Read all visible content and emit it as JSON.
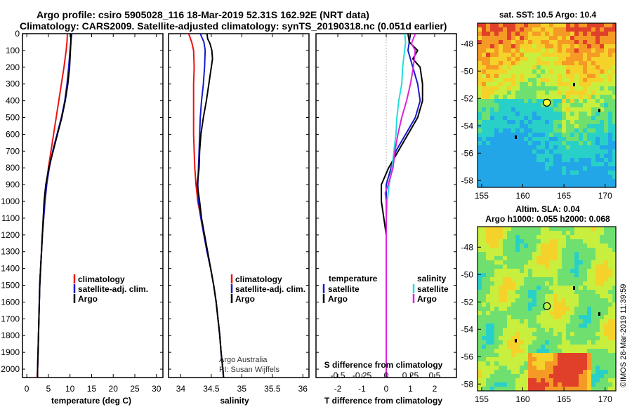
{
  "header": {
    "title_line1": "Argo profile: csiro 5905028_116 18-Mar-2019 52.31S 162.92E (NRT data)",
    "title_line2": "Climatology: CARS2009. Satellite-adjusted climatology: synTS_20190318.nc (0.051d earlier)"
  },
  "depth_ticks": [
    "0",
    "100",
    "200",
    "300",
    "400",
    "500",
    "600",
    "700",
    "800",
    "900",
    "1000",
    "1100",
    "1200",
    "1300",
    "1400",
    "1500",
    "1600",
    "1700",
    "1800",
    "1900",
    "2000"
  ],
  "colors": {
    "climatology": "#ee1111",
    "satellite": "#1a1acc",
    "argo": "#000000",
    "cyan": "#22dddd",
    "magenta": "#dd22dd"
  },
  "chart_data": [
    {
      "type": "line",
      "panel": "temperature",
      "xlabel": "temperature (deg C)",
      "xlim": [
        -1,
        31.5
      ],
      "ylim": [
        2050,
        0
      ],
      "x_ticks": [
        "0",
        "5",
        "10",
        "15",
        "20",
        "25",
        "30"
      ],
      "legend": [
        "climatology",
        "satellite-adj. clim.",
        "Argo"
      ],
      "series": [
        {
          "name": "climatology",
          "color": "#ee1111",
          "depth": [
            0,
            50,
            100,
            200,
            300,
            400,
            500,
            600,
            700,
            800,
            900,
            1000,
            1100,
            1200,
            1300,
            1400,
            1500,
            1600,
            1700,
            1800,
            1900,
            2000,
            2050
          ],
          "values": [
            9.4,
            9.3,
            9.1,
            8.6,
            8.0,
            7.4,
            6.8,
            6.2,
            5.6,
            5.0,
            4.6,
            4.2,
            3.9,
            3.6,
            3.4,
            3.2,
            3.0,
            2.9,
            2.8,
            2.7,
            2.6,
            2.5,
            2.4
          ]
        },
        {
          "name": "satellite-adj. clim.",
          "color": "#1a1acc",
          "depth": [
            0,
            50,
            100,
            200,
            300,
            400,
            500,
            600,
            700,
            800,
            900,
            1000,
            1100,
            1200,
            1300,
            1400,
            1500,
            1600,
            1700,
            1800,
            1900,
            2000,
            2050
          ],
          "values": [
            10.4,
            10.2,
            10.0,
            9.7,
            9.3,
            8.8,
            8.0,
            7.0,
            6.0,
            5.2,
            4.6,
            4.2,
            3.9,
            3.6,
            3.4,
            3.2,
            3.0,
            2.9,
            2.8,
            2.7,
            2.6,
            2.5,
            2.5
          ]
        },
        {
          "name": "Argo",
          "color": "#000000",
          "depth": [
            0,
            50,
            100,
            200,
            300,
            400,
            500,
            600,
            700,
            800,
            900,
            1000,
            1100,
            1200,
            1300,
            1400,
            1500,
            1600,
            1700,
            1800,
            1900,
            2000,
            2050
          ],
          "values": [
            10.2,
            10.2,
            10.1,
            9.9,
            9.5,
            8.9,
            8.1,
            7.1,
            6.1,
            5.1,
            4.4,
            4.0,
            3.8,
            3.6,
            3.4,
            3.2,
            3.0,
            2.9,
            2.8,
            2.7,
            2.6,
            2.5,
            2.5
          ]
        }
      ]
    },
    {
      "type": "line",
      "panel": "salinity",
      "xlabel": "salinity",
      "xlim": [
        33.8,
        36.1
      ],
      "ylim": [
        2050,
        0
      ],
      "x_ticks": [
        "34",
        "34.5",
        "35",
        "35.5",
        "36"
      ],
      "legend": [
        "climatology",
        "satellite-adj. clim.",
        "Argo"
      ],
      "credit": [
        "Argo Australia",
        "PI: Susan Wijffels"
      ],
      "series": [
        {
          "name": "climatology",
          "color": "#ee1111",
          "depth": [
            0,
            50,
            100,
            200,
            300,
            400,
            500,
            600,
            700,
            800,
            900,
            1000,
            1100,
            1200,
            1300,
            1400,
            1500,
            1600,
            1700,
            1800,
            1900,
            2000,
            2050
          ],
          "values": [
            34.13,
            34.18,
            34.21,
            34.22,
            34.21,
            34.21,
            34.21,
            34.21,
            34.22,
            34.23,
            34.25,
            34.28,
            34.33,
            34.38,
            34.43,
            34.49,
            34.54,
            34.58,
            34.61,
            34.64,
            34.66,
            34.69,
            34.7
          ]
        },
        {
          "name": "satellite-adj. clim.",
          "color": "#1a1acc",
          "depth": [
            0,
            50,
            100,
            200,
            300,
            400,
            500,
            600,
            700,
            800,
            900,
            1000,
            1100,
            1200,
            1300,
            1400,
            1500,
            1600,
            1700,
            1800,
            1900,
            2000,
            2050
          ],
          "values": [
            34.32,
            34.38,
            34.4,
            34.39,
            34.37,
            34.34,
            34.32,
            34.31,
            34.3,
            34.29,
            34.28,
            34.29,
            34.33,
            34.38,
            34.43,
            34.49,
            34.54,
            34.58,
            34.61,
            34.64,
            34.66,
            34.69,
            34.7
          ]
        },
        {
          "name": "Argo",
          "color": "#000000",
          "depth": [
            0,
            30,
            60,
            100,
            150,
            200,
            300,
            400,
            500,
            600,
            700,
            800,
            900,
            950,
            1000,
            1100,
            1200,
            1300,
            1400,
            1500,
            1600,
            1700,
            1800,
            1900,
            2000,
            2050
          ],
          "values": [
            34.43,
            34.44,
            34.48,
            34.51,
            34.52,
            34.5,
            34.46,
            34.42,
            34.37,
            34.33,
            34.31,
            34.3,
            34.27,
            34.29,
            34.31,
            34.34,
            34.39,
            34.44,
            34.49,
            34.54,
            34.58,
            34.61,
            34.64,
            34.66,
            34.69,
            34.7
          ]
        }
      ]
    },
    {
      "type": "line",
      "panel": "differences",
      "xlabel": "T difference from climatology",
      "xlabel2": "S difference from climatology",
      "xlim": [
        -2.9,
        2.9
      ],
      "ylim": [
        2050,
        0
      ],
      "x_ticks": [
        "-2",
        "-1",
        "0",
        "1",
        "2"
      ],
      "x2_ticks": [
        "-0.5",
        "-0.25",
        "0",
        "0.25",
        "0.5"
      ],
      "legend_left_title": "temperature",
      "legend_left": [
        "satellite",
        "Argo"
      ],
      "legend_right_title": "salinity",
      "legend_right": [
        "satellite",
        "Argo"
      ],
      "series": [
        {
          "name": "T satellite",
          "color": "#1a1acc",
          "depth": [
            0,
            50,
            100,
            200,
            300,
            400,
            500,
            600,
            700,
            800,
            900,
            1000,
            1100,
            1200,
            1300,
            1400,
            1500,
            1600,
            1700,
            1800,
            1900,
            2000,
            2050
          ],
          "values": [
            1.0,
            0.95,
            0.9,
            1.1,
            1.3,
            1.4,
            1.2,
            0.8,
            0.4,
            0.2,
            0.0,
            0.0,
            0.0,
            0.0,
            0.0,
            0.0,
            0.0,
            0.0,
            0.0,
            0.0,
            0.0,
            0.0,
            0.0
          ]
        },
        {
          "name": "T Argo",
          "color": "#000000",
          "depth": [
            0,
            50,
            100,
            150,
            200,
            300,
            400,
            500,
            600,
            700,
            800,
            900,
            1000,
            1100,
            1200,
            1300,
            1400,
            1500,
            1600,
            1700,
            1800,
            1900,
            2000,
            2050
          ],
          "values": [
            0.9,
            0.95,
            1.3,
            1.1,
            1.4,
            1.5,
            1.5,
            1.3,
            0.9,
            0.5,
            0.1,
            -0.2,
            -0.2,
            -0.1,
            0.0,
            0.0,
            0.0,
            0.0,
            0.0,
            0.0,
            0.0,
            0.0,
            0.0,
            0.0
          ]
        },
        {
          "name": "S satellite",
          "color": "#22dddd",
          "depth": [
            0,
            50,
            100,
            200,
            300,
            400,
            500,
            600,
            700,
            800,
            900,
            1000,
            1100,
            1200,
            1300,
            1400,
            1500,
            1600,
            1700,
            1800,
            1900,
            2000,
            2050
          ],
          "values": [
            0.19,
            0.2,
            0.19,
            0.17,
            0.16,
            0.13,
            0.11,
            0.1,
            0.08,
            0.06,
            0.03,
            0.01,
            0.0,
            0.0,
            0.0,
            0.0,
            0.0,
            0.0,
            0.0,
            0.0,
            0.0,
            0.0,
            0.0
          ]
        },
        {
          "name": "S Argo",
          "color": "#dd22dd",
          "depth": [
            0,
            30,
            60,
            100,
            200,
            300,
            400,
            500,
            600,
            700,
            800,
            900,
            950,
            1000,
            1100,
            1200,
            1300,
            1400,
            1500,
            1600,
            1700,
            1800,
            1900,
            2000,
            2050
          ],
          "values": [
            0.3,
            0.28,
            0.26,
            0.3,
            0.28,
            0.25,
            0.21,
            0.16,
            0.12,
            0.09,
            0.07,
            0.02,
            -0.01,
            0.0,
            0.0,
            0.0,
            0.0,
            0.0,
            0.0,
            0.0,
            0.0,
            0.0,
            0.0,
            0.0,
            0.0
          ]
        }
      ]
    },
    {
      "type": "heatmap",
      "panel": "sst-map",
      "title": "sat. SST: 10.5 Argo: 10.4",
      "x_ticks": [
        "155",
        "160",
        "165",
        "170"
      ],
      "y_ticks": [
        "-48",
        "-50",
        "-52",
        "-54",
        "-56",
        "-58"
      ],
      "xlim": [
        154.5,
        171.3
      ],
      "ylim": [
        -58.5,
        -46.5
      ],
      "argo_position": {
        "lon": 162.92,
        "lat": -52.31
      }
    },
    {
      "type": "heatmap",
      "panel": "sla-map",
      "title_line1": "Altim. SLA: 0.04",
      "title_line2": "Argo h1000: 0.055 h2000: 0.068",
      "x_ticks": [
        "155",
        "160",
        "165",
        "170"
      ],
      "y_ticks": [
        "-48",
        "-50",
        "-52",
        "-54",
        "-56",
        "-58"
      ],
      "xlim": [
        154.5,
        171.3
      ],
      "ylim": [
        -58.5,
        -46.5
      ],
      "argo_position": {
        "lon": 162.92,
        "lat": -52.31
      }
    }
  ],
  "footer": {
    "imos_stamp": "©IMOS 28-Mar-2019 11:39:59"
  }
}
